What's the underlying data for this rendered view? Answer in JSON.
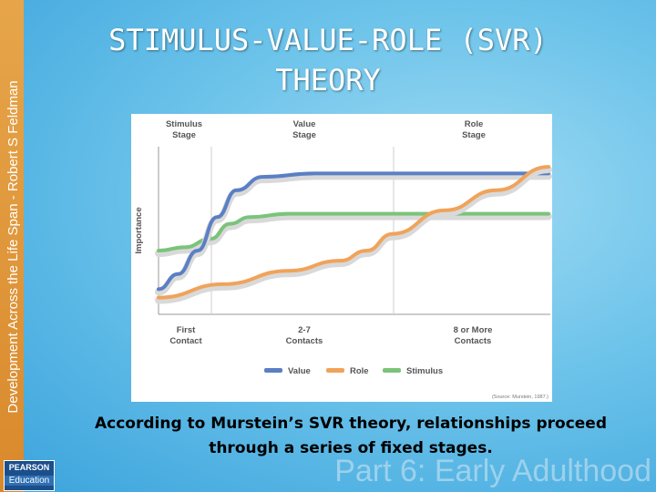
{
  "slide": {
    "title_line1": "STIMULUS-VALUE-ROLE (SVR)",
    "title_line2": "THEORY",
    "sidebar_text": "Development Across the Life Span - Robert S Feldman",
    "caption_line1": "According to Murstein’s SVR theory, relationships proceed",
    "caption_line2": "through a series of fixed stages.",
    "footer_text": "Part 6: Early Adulthood",
    "logo_top": "PEARSON",
    "logo_bottom": "Education"
  },
  "chart_data": {
    "type": "line",
    "ylabel": "Importance",
    "stages": [
      {
        "line1": "Stimulus",
        "line2": "Stage"
      },
      {
        "line1": "Value",
        "line2": "Stage"
      },
      {
        "line1": "Role",
        "line2": "Stage"
      }
    ],
    "contacts": [
      {
        "line1": "First",
        "line2": "Contact"
      },
      {
        "line1": "2-7",
        "line2": "Contacts"
      },
      {
        "line1": "8 or More",
        "line2": "Contacts"
      }
    ],
    "series": [
      {
        "name": "Value",
        "color": "#5b7fc4",
        "points": [
          [
            0,
            15
          ],
          [
            0.15,
            24
          ],
          [
            0.3,
            38
          ],
          [
            0.45,
            58
          ],
          [
            0.6,
            74
          ],
          [
            0.8,
            82
          ],
          [
            1.2,
            84
          ],
          [
            2.0,
            84
          ],
          [
            3.0,
            84
          ]
        ]
      },
      {
        "name": "Role",
        "color": "#f0a35a",
        "points": [
          [
            0,
            10
          ],
          [
            0.5,
            18
          ],
          [
            1.0,
            26
          ],
          [
            1.4,
            32
          ],
          [
            1.6,
            38
          ],
          [
            1.8,
            48
          ],
          [
            2.2,
            62
          ],
          [
            2.6,
            74
          ],
          [
            3.0,
            88
          ]
        ]
      },
      {
        "name": "Stimulus",
        "color": "#7ac47a",
        "points": [
          [
            0,
            38
          ],
          [
            0.2,
            40
          ],
          [
            0.4,
            45
          ],
          [
            0.55,
            54
          ],
          [
            0.7,
            58
          ],
          [
            1.0,
            60
          ],
          [
            2.0,
            60
          ],
          [
            3.0,
            60
          ]
        ]
      }
    ],
    "source_note": "(Source: Murstein, 1987.)"
  }
}
